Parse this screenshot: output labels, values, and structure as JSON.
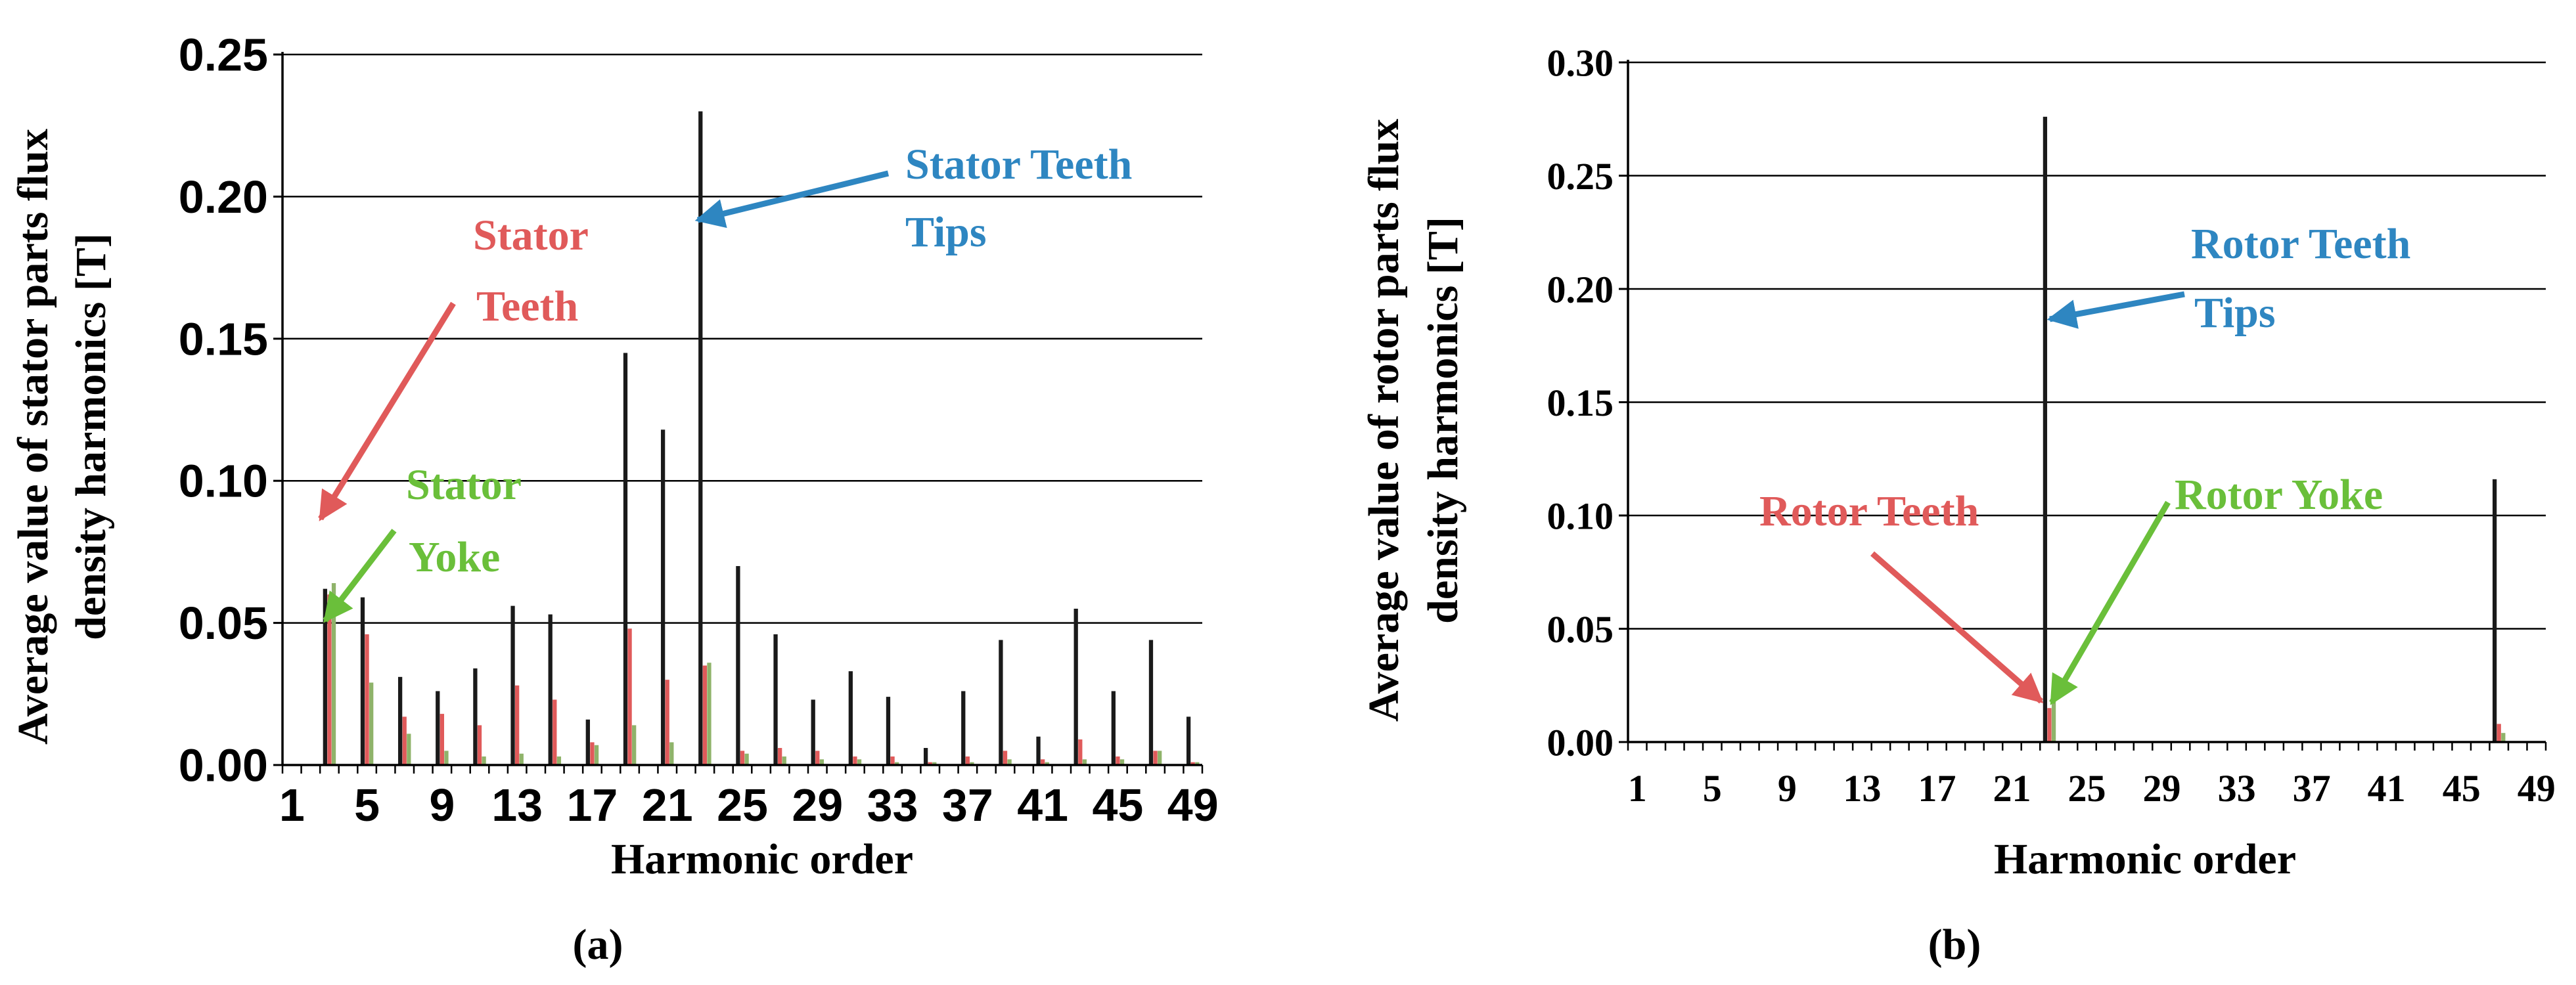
{
  "chart_data": [
    {
      "panel_label": "(a)",
      "type": "bar",
      "ylabel_line1": "Average value of stator parts flux",
      "ylabel_line2": "density  harmonics [T]",
      "xlabel": "Harmonic order",
      "ylim": [
        0,
        0.25
      ],
      "y_ticks": [
        "0.00",
        "0.05",
        "0.10",
        "0.15",
        "0.20",
        "0.25"
      ],
      "x_range": [
        1,
        49
      ],
      "x_ticks": [
        1,
        5,
        9,
        13,
        17,
        21,
        25,
        29,
        33,
        37,
        41,
        45,
        49
      ],
      "x": [
        3,
        5,
        7,
        9,
        11,
        13,
        15,
        17,
        19,
        21,
        23,
        25,
        27,
        29,
        31,
        33,
        35,
        37,
        39,
        41,
        43,
        45,
        47,
        49
      ],
      "grid": "horizontal",
      "series": [
        {
          "color": "#1a1a1a",
          "values": [
            0.062,
            0.059,
            0.031,
            0.026,
            0.034,
            0.056,
            0.053,
            0.016,
            0.145,
            0.118,
            0.23,
            0.07,
            0.046,
            0.023,
            0.033,
            0.024,
            0.006,
            0.026,
            0.044,
            0.01,
            0.055,
            0.026,
            0.044,
            0.017
          ]
        },
        {
          "color": "#e05a5a",
          "values": [
            0.06,
            0.046,
            0.017,
            0.018,
            0.014,
            0.028,
            0.023,
            0.008,
            0.048,
            0.03,
            0.035,
            0.005,
            0.006,
            0.005,
            0.003,
            0.003,
            0.001,
            0.003,
            0.005,
            0.002,
            0.009,
            0.003,
            0.005,
            0.001
          ]
        },
        {
          "color": "#8fb36a",
          "values": [
            0.064,
            0.029,
            0.011,
            0.005,
            0.003,
            0.004,
            0.003,
            0.007,
            0.014,
            0.008,
            0.036,
            0.004,
            0.003,
            0.002,
            0.002,
            0.001,
            0.001,
            0.001,
            0.002,
            0.001,
            0.002,
            0.002,
            0.005,
            0.001
          ]
        }
      ],
      "annotations": [
        {
          "lines": [
            "Stator Teeth",
            "Tips"
          ],
          "color": "#2e86c1"
        },
        {
          "lines": [
            "Stator",
            "Teeth"
          ],
          "color": "#e05a5a"
        },
        {
          "lines": [
            "Stator",
            "Yoke"
          ],
          "color": "#6abf3a"
        }
      ]
    },
    {
      "panel_label": "(b)",
      "type": "bar",
      "ylabel_line1": "Average value of rotor parts flux",
      "ylabel_line2": "density  harmonics [T]",
      "xlabel": "Harmonic order",
      "ylim": [
        0,
        0.3
      ],
      "y_ticks": [
        "0.00",
        "0.05",
        "0.10",
        "0.15",
        "0.20",
        "0.25",
        "0.30"
      ],
      "x_range": [
        1,
        49
      ],
      "x_ticks": [
        1,
        5,
        9,
        13,
        17,
        21,
        25,
        29,
        33,
        37,
        41,
        45,
        49
      ],
      "x": [
        23,
        47
      ],
      "grid": "horizontal",
      "series": [
        {
          "color": "#1a1a1a",
          "values": [
            0.276,
            0.116
          ]
        },
        {
          "color": "#e05a5a",
          "values": [
            0.015,
            0.008
          ]
        },
        {
          "color": "#8fb36a",
          "values": [
            0.018,
            0.004
          ]
        }
      ],
      "annotations": [
        {
          "lines": [
            "Rotor Teeth",
            "Tips"
          ],
          "color": "#2e86c1"
        },
        {
          "lines": [
            "Rotor Teeth"
          ],
          "color": "#e05a5a"
        },
        {
          "lines": [
            "Rotor Yoke"
          ],
          "color": "#6abf3a"
        }
      ]
    }
  ]
}
